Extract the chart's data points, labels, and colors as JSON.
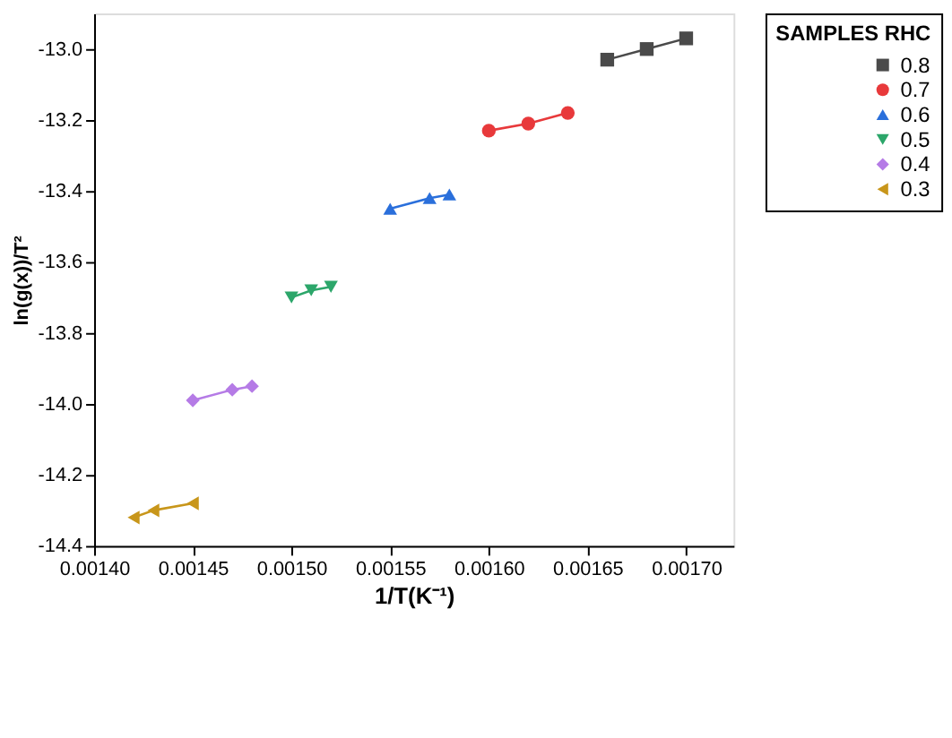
{
  "chart_data": {
    "type": "line",
    "xlabel": "1/T(K⁻¹)",
    "ylabel": "ln(g(x))/T²",
    "legend_title": "SAMPLES RHC",
    "legend": "top right",
    "grid": false,
    "line_style": "solid",
    "xlim": [
      0.0014,
      0.001724
    ],
    "ylim": [
      -14.4,
      -12.9
    ],
    "xticks": [
      {
        "value": 0.0014,
        "label": "0.00140"
      },
      {
        "value": 0.00145,
        "label": "0.00145"
      },
      {
        "value": 0.0015,
        "label": "0.00150"
      },
      {
        "value": 0.00155,
        "label": "0.00155"
      },
      {
        "value": 0.0016,
        "label": "0.00160"
      },
      {
        "value": 0.00165,
        "label": "0.00165"
      },
      {
        "value": 0.0017,
        "label": "0.00170"
      }
    ],
    "yticks": [
      {
        "value": -14.4,
        "label": "-14.4"
      },
      {
        "value": -14.2,
        "label": "-14.2"
      },
      {
        "value": -14.0,
        "label": "-14.0"
      },
      {
        "value": -13.8,
        "label": "-13.8"
      },
      {
        "value": -13.6,
        "label": "-13.6"
      },
      {
        "value": -13.4,
        "label": "-13.4"
      },
      {
        "value": -13.2,
        "label": "-13.2"
      },
      {
        "value": -13.0,
        "label": "-13.0"
      }
    ],
    "series": [
      {
        "name": "0.8",
        "color": "#4a4a4a",
        "marker": "square",
        "x": [
          0.00166,
          0.00168,
          0.0017
        ],
        "values": [
          -13.03,
          -13.0,
          -12.97
        ]
      },
      {
        "name": "0.7",
        "color": "#e8393b",
        "marker": "circle",
        "x": [
          0.0016,
          0.00162,
          0.00164
        ],
        "values": [
          -13.23,
          -13.21,
          -13.18
        ]
      },
      {
        "name": "0.6",
        "color": "#2a6fdb",
        "marker": "triangle-up",
        "x": [
          0.00155,
          0.00157,
          0.00158
        ],
        "values": [
          -13.45,
          -13.42,
          -13.41
        ]
      },
      {
        "name": "0.5",
        "color": "#2ca66a",
        "marker": "triangle-down",
        "x": [
          0.0015,
          0.00151,
          0.00152
        ],
        "values": [
          -13.7,
          -13.68,
          -13.67
        ]
      },
      {
        "name": "0.4",
        "color": "#b57be6",
        "marker": "diamond",
        "x": [
          0.00145,
          0.00147,
          0.00148
        ],
        "values": [
          -13.99,
          -13.96,
          -13.95
        ]
      },
      {
        "name": "0.3",
        "color": "#c8961a",
        "marker": "triangle-left",
        "x": [
          0.00142,
          0.00143,
          0.00145
        ],
        "values": [
          -14.32,
          -14.3,
          -14.28
        ]
      }
    ]
  }
}
